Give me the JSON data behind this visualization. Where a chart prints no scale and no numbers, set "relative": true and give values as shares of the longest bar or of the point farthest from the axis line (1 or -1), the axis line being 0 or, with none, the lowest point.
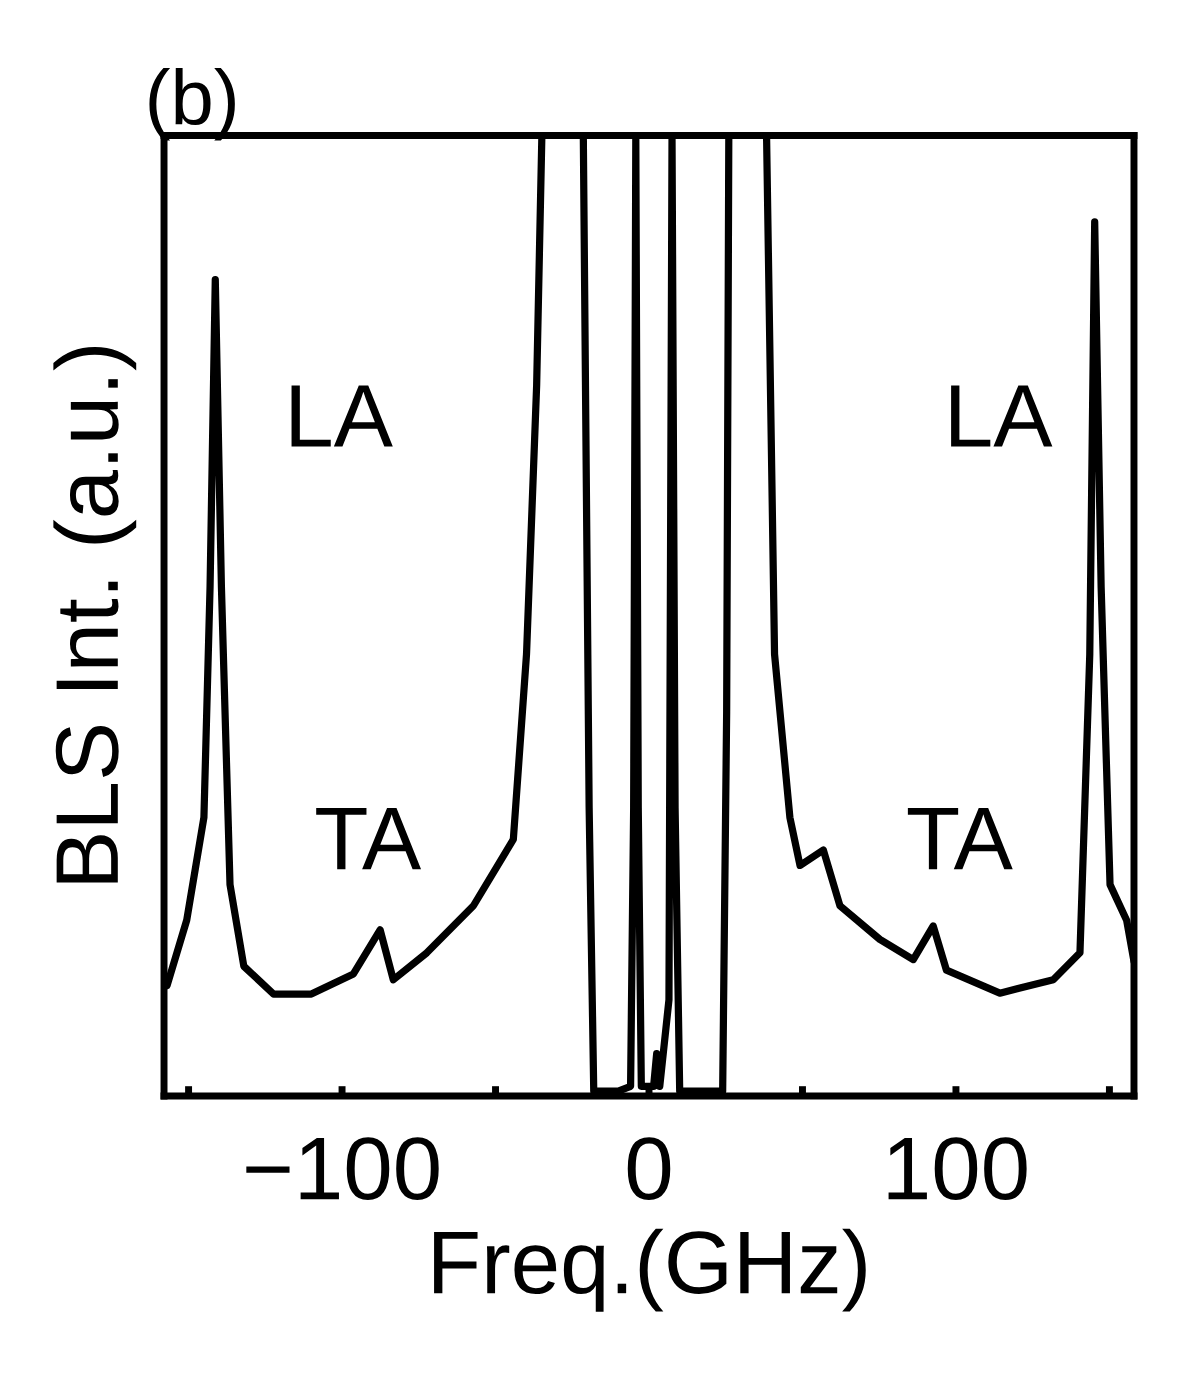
{
  "chart_data": {
    "type": "line",
    "title": "(b)",
    "xlabel": "Freq.(GHz)",
    "ylabel": "BLS Int. (a.u.)",
    "relative": true,
    "xlim": [
      -158,
      158
    ],
    "xticks": [
      {
        "value": -150,
        "label": null
      },
      -100,
      {
        "value": -50,
        "label": null
      },
      0,
      {
        "value": 50,
        "label": null
      },
      100,
      {
        "value": 150,
        "label": null
      }
    ],
    "grid": false,
    "marker": "none",
    "line_style": "solid",
    "tick_labels": "x",
    "series": [
      {
        "color": "#000000",
        "x": [
          -157,
          -150.6,
          -145,
          -143,
          -141.3,
          -139.3,
          -136.5,
          -132,
          -122.3,
          -110,
          -96.3,
          -87.6,
          -83.3,
          -72.4,
          -57.2,
          -44.2,
          -39.9,
          -36.6,
          -34.9,
          -21.4,
          -19.5,
          -18,
          -10,
          -6,
          -5,
          -4.3,
          -3.5,
          -2.5,
          1.5,
          2.5,
          3.5,
          6.5,
          7.5,
          8.5,
          10,
          24,
          25.3,
          26,
          38.3,
          40.9,
          45.9,
          49.2,
          56.8,
          62.2,
          75.2,
          86.1,
          92.6,
          96.9,
          114.3,
          131.7,
          140.4,
          143.6,
          145.2,
          147.3,
          150.2,
          155.6,
          158
        ],
        "values": [
          0.115,
          0.183,
          0.29,
          0.53,
          0.85,
          0.53,
          0.22,
          0.135,
          0.106,
          0.106,
          0.127,
          0.173,
          0.121,
          0.149,
          0.198,
          0.267,
          0.46,
          0.74,
          1,
          1,
          0.3,
          0.005,
          0.005,
          0.01,
          0.3,
          1,
          0.3,
          0.01,
          0.01,
          0.044,
          0.01,
          0.1,
          1,
          0.3,
          0.005,
          0.005,
          0.4,
          1,
          1,
          0.46,
          0.29,
          0.24,
          0.256,
          0.198,
          0.163,
          0.142,
          0.177,
          0.131,
          0.107,
          0.121,
          0.149,
          0.46,
          0.91,
          0.53,
          0.22,
          0.183,
          0.14
        ]
      }
    ],
    "annotations": [
      "LA",
      "TA",
      "LA",
      "TA"
    ]
  }
}
